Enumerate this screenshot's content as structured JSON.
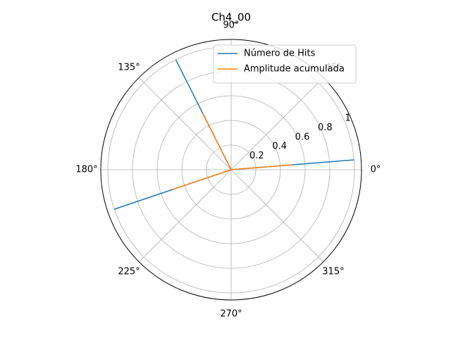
{
  "chart_data": {
    "type": "polar",
    "title": "Ch4_00",
    "x": [
      4.6,
      116.7,
      198.7
    ],
    "series": [
      {
        "name": "Número de Hits",
        "color": "#1f77b4",
        "values": [
          1.0,
          1.0,
          1.0
        ]
      },
      {
        "name": "Amplitude acumulada",
        "color": "#ff7f0e",
        "values": [
          0.5,
          0.51,
          0.5
        ]
      }
    ],
    "ylim": [
      0,
      1.057
    ],
    "yticks": [
      0.2,
      0.4,
      0.6,
      0.8,
      1.0
    ],
    "xticks": [
      {
        "value": 0,
        "label": "0°"
      },
      {
        "value": 45,
        "label": "45°"
      },
      {
        "value": 90,
        "label": "90°"
      },
      {
        "value": 135,
        "label": "135°"
      },
      {
        "value": 180,
        "label": "180°"
      },
      {
        "value": 225,
        "label": "225°"
      },
      {
        "value": 270,
        "label": "270°"
      },
      {
        "value": 315,
        "label": "315°"
      }
    ],
    "grid": true,
    "legend": "upper right"
  }
}
